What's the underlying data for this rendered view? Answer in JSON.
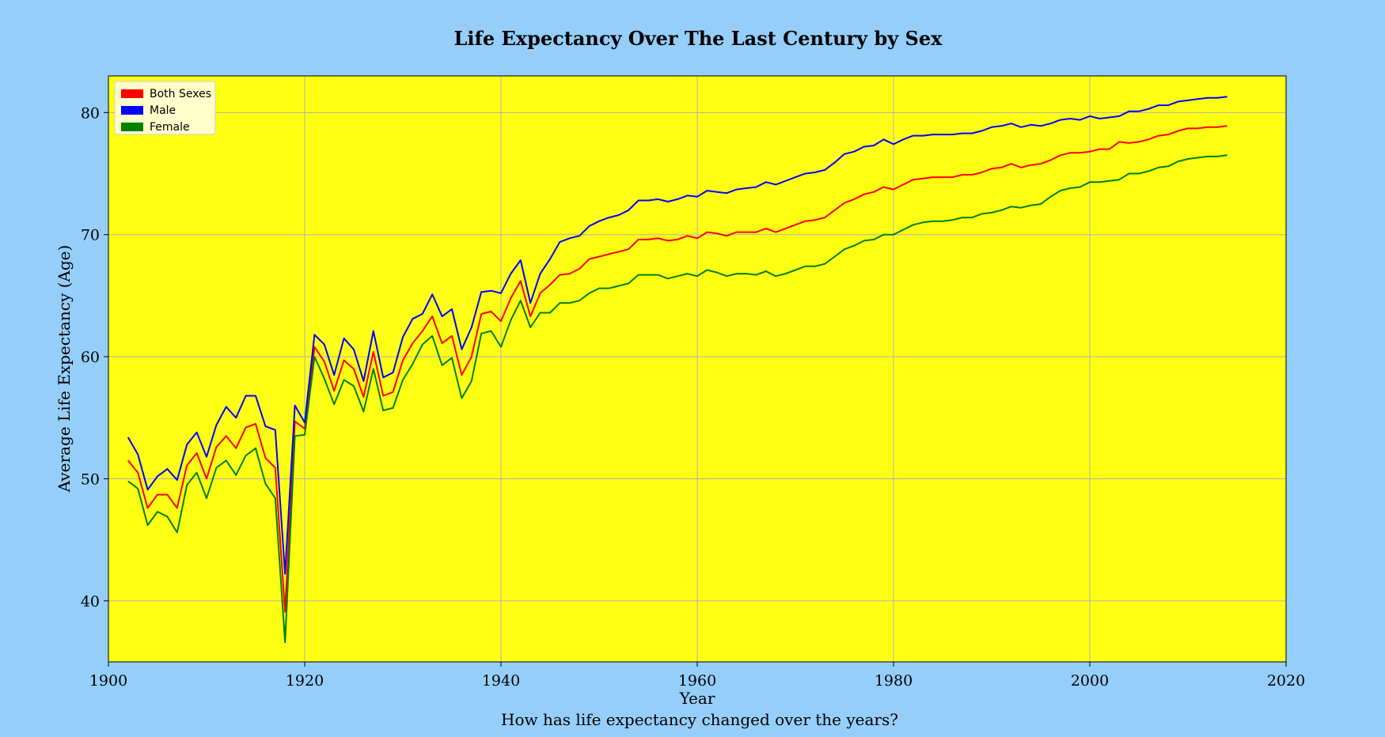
{
  "chart_data": {
    "type": "line",
    "title": "Life Expectancy Over The Last Century by Sex",
    "xlabel": "Year",
    "ylabel": "Average Life Expectancy (Age)",
    "caption": "How has life expectancy changed over the years?",
    "xlim": [
      1900,
      2020
    ],
    "ylim": [
      35,
      83
    ],
    "xticks": [
      "1900",
      "1920",
      "1940",
      "1960",
      "1980",
      "2000",
      "2020"
    ],
    "yticks": [
      "40",
      "50",
      "60",
      "70",
      "80"
    ],
    "grid": true,
    "legend_position": "top-left",
    "background_color": "#ffff14",
    "page_color": "#95cefa",
    "x": [
      1902,
      1903,
      1904,
      1905,
      1906,
      1907,
      1908,
      1909,
      1910,
      1911,
      1912,
      1913,
      1914,
      1915,
      1916,
      1917,
      1918,
      1919,
      1920,
      1921,
      1922,
      1923,
      1924,
      1925,
      1926,
      1927,
      1928,
      1929,
      1930,
      1931,
      1932,
      1933,
      1934,
      1935,
      1936,
      1937,
      1938,
      1939,
      1940,
      1941,
      1942,
      1943,
      1944,
      1945,
      1946,
      1947,
      1948,
      1949,
      1950,
      1951,
      1952,
      1953,
      1954,
      1955,
      1956,
      1957,
      1958,
      1959,
      1960,
      1961,
      1962,
      1963,
      1964,
      1965,
      1966,
      1967,
      1968,
      1969,
      1970,
      1971,
      1972,
      1973,
      1974,
      1975,
      1976,
      1977,
      1978,
      1979,
      1980,
      1981,
      1982,
      1983,
      1984,
      1985,
      1986,
      1987,
      1988,
      1989,
      1990,
      1991,
      1992,
      1993,
      1994,
      1995,
      1996,
      1997,
      1998,
      1999,
      2000,
      2001,
      2002,
      2003,
      2004,
      2005,
      2006,
      2007,
      2008,
      2009,
      2010,
      2011,
      2012,
      2013,
      2014
    ],
    "series": [
      {
        "name": "Both Sexes",
        "color": "#ff0000",
        "values": [
          51.5,
          50.5,
          47.6,
          48.7,
          48.7,
          47.6,
          51.1,
          52.1,
          50.0,
          52.6,
          53.5,
          52.5,
          54.2,
          54.5,
          51.7,
          50.9,
          39.1,
          54.7,
          54.1,
          60.8,
          59.6,
          57.2,
          59.7,
          59.0,
          56.7,
          60.4,
          56.8,
          57.1,
          59.7,
          61.1,
          62.1,
          63.3,
          61.1,
          61.7,
          58.5,
          60.0,
          63.5,
          63.7,
          62.9,
          64.8,
          66.2,
          63.3,
          65.2,
          65.9,
          66.7,
          66.8,
          67.2,
          68.0,
          68.2,
          68.4,
          68.6,
          68.8,
          69.6,
          69.6,
          69.7,
          69.5,
          69.6,
          69.9,
          69.7,
          70.2,
          70.1,
          69.9,
          70.2,
          70.2,
          70.2,
          70.5,
          70.2,
          70.5,
          70.8,
          71.1,
          71.2,
          71.4,
          72.0,
          72.6,
          72.9,
          73.3,
          73.5,
          73.9,
          73.7,
          74.1,
          74.5,
          74.6,
          74.7,
          74.7,
          74.7,
          74.9,
          74.9,
          75.1,
          75.4,
          75.5,
          75.8,
          75.5,
          75.7,
          75.8,
          76.1,
          76.5,
          76.7,
          76.7,
          76.8,
          77.0,
          77.0,
          77.6,
          77.5,
          77.6,
          77.8,
          78.1,
          78.2,
          78.5,
          78.7,
          78.7,
          78.8,
          78.8,
          78.9
        ]
      },
      {
        "name": "Male",
        "color": "#0000ff",
        "values": [
          53.4,
          52.0,
          49.1,
          50.2,
          50.8,
          49.9,
          52.8,
          53.8,
          51.8,
          54.4,
          55.9,
          55.0,
          56.8,
          56.8,
          54.3,
          54.0,
          42.2,
          56.0,
          54.6,
          61.8,
          61.0,
          58.5,
          61.5,
          60.6,
          58.0,
          62.1,
          58.3,
          58.7,
          61.6,
          63.1,
          63.5,
          65.1,
          63.3,
          63.9,
          60.6,
          62.4,
          65.3,
          65.4,
          65.2,
          66.8,
          67.9,
          64.4,
          66.8,
          68.0,
          69.4,
          69.7,
          69.9,
          70.7,
          71.1,
          71.4,
          71.6,
          72.0,
          72.8,
          72.8,
          72.9,
          72.7,
          72.9,
          73.2,
          73.1,
          73.6,
          73.5,
          73.4,
          73.7,
          73.8,
          73.9,
          74.3,
          74.1,
          74.4,
          74.7,
          75.0,
          75.1,
          75.3,
          75.9,
          76.6,
          76.8,
          77.2,
          77.3,
          77.8,
          77.4,
          77.8,
          78.1,
          78.1,
          78.2,
          78.2,
          78.2,
          78.3,
          78.3,
          78.5,
          78.8,
          78.9,
          79.1,
          78.8,
          79.0,
          78.9,
          79.1,
          79.4,
          79.5,
          79.4,
          79.7,
          79.5,
          79.6,
          79.7,
          80.1,
          80.1,
          80.3,
          80.6,
          80.6,
          80.9,
          81.0,
          81.1,
          81.2,
          81.2,
          81.3
        ]
      },
      {
        "name": "Female",
        "color": "#008000",
        "values": [
          49.8,
          49.2,
          46.2,
          47.3,
          46.9,
          45.6,
          49.5,
          50.5,
          48.4,
          50.9,
          51.5,
          50.3,
          51.9,
          52.5,
          49.6,
          48.4,
          36.6,
          53.5,
          53.6,
          60.0,
          58.2,
          56.1,
          58.1,
          57.6,
          55.5,
          59.0,
          55.6,
          55.8,
          58.1,
          59.4,
          61.0,
          61.7,
          59.3,
          59.9,
          56.6,
          58.0,
          61.9,
          62.1,
          60.8,
          63.0,
          64.6,
          62.4,
          63.6,
          63.6,
          64.4,
          64.4,
          64.6,
          65.2,
          65.6,
          65.6,
          65.8,
          66.0,
          66.7,
          66.7,
          66.7,
          66.4,
          66.6,
          66.8,
          66.6,
          67.1,
          66.9,
          66.6,
          66.8,
          66.8,
          66.7,
          67.0,
          66.6,
          66.8,
          67.1,
          67.4,
          67.4,
          67.6,
          68.2,
          68.8,
          69.1,
          69.5,
          69.6,
          70.0,
          70.0,
          70.4,
          70.8,
          71.0,
          71.1,
          71.1,
          71.2,
          71.4,
          71.4,
          71.7,
          71.8,
          72.0,
          72.3,
          72.2,
          72.4,
          72.5,
          73.1,
          73.6,
          73.8,
          73.9,
          74.3,
          74.3,
          74.4,
          74.5,
          75.0,
          75.0,
          75.2,
          75.5,
          75.6,
          76.0,
          76.2,
          76.3,
          76.4,
          76.4,
          76.5
        ]
      }
    ]
  }
}
